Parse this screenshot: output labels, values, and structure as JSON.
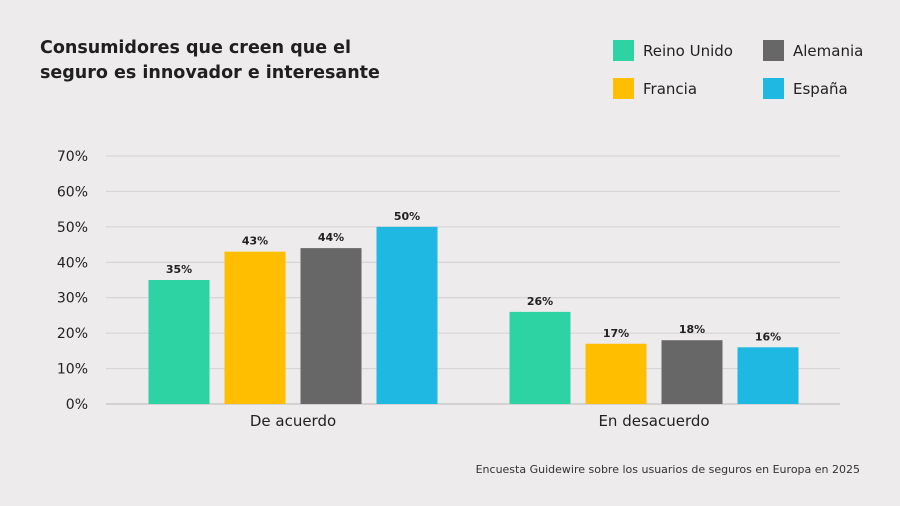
{
  "chart_data": {
    "type": "bar",
    "title": [
      "Consumidores que creen que el",
      "seguro es innovador e interesante"
    ],
    "categories": [
      "De acuerdo",
      "En desacuerdo"
    ],
    "series": [
      {
        "name": "Reino Unido",
        "color": "#2dd3a3",
        "values": [
          35,
          26
        ],
        "labels": [
          "35%",
          "26%"
        ]
      },
      {
        "name": "Francia",
        "color": "#ffbe00",
        "values": [
          43,
          17
        ],
        "labels": [
          "43%",
          "17%"
        ]
      },
      {
        "name": "Alemania",
        "color": "#676767",
        "values": [
          44,
          18
        ],
        "labels": [
          "44%",
          "18%"
        ]
      },
      {
        "name": "España",
        "color": "#1fb8e2",
        "values": [
          50,
          16
        ],
        "labels": [
          "50%",
          "16%"
        ]
      }
    ],
    "y_ticks": [
      "0%",
      "10%",
      "20%",
      "30%",
      "40%",
      "50%",
      "60%",
      "70%"
    ],
    "ylim": [
      0,
      70
    ],
    "grid": true,
    "legend_position": "top-right",
    "xlabel": "",
    "ylabel": ""
  },
  "source": "Encuesta Guidewire sobre los usuarios de seguros en Europa en 2025"
}
